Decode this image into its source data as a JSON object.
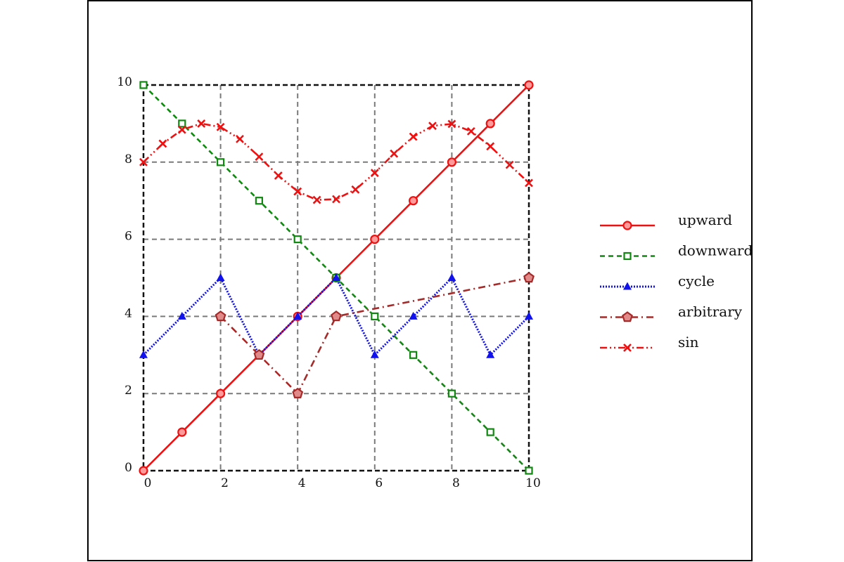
{
  "chart_data": {
    "type": "line",
    "title": "",
    "xlabel": "",
    "ylabel": "",
    "xlim": [
      0,
      10
    ],
    "ylim": [
      0,
      10
    ],
    "xticks": [
      0,
      2,
      4,
      6,
      8,
      10
    ],
    "yticks": [
      0,
      2,
      4,
      6,
      8,
      10
    ],
    "xtick_labels": [
      "0",
      "2",
      "4",
      "6",
      "8",
      "10"
    ],
    "ytick_labels": [
      "0",
      "2",
      "4",
      "6",
      "8",
      "10"
    ],
    "grid": true,
    "legend_position": "right",
    "series": [
      {
        "name": "upward",
        "color": "#ee1111",
        "line_style": "solid",
        "marker": "circle",
        "x": [
          0,
          1,
          2,
          3,
          4,
          5,
          6,
          7,
          8,
          9,
          10
        ],
        "y": [
          0,
          1,
          2,
          3,
          4,
          5,
          6,
          7,
          8,
          9,
          10
        ]
      },
      {
        "name": "downward",
        "color": "#118811",
        "line_style": "dashed",
        "marker": "square",
        "x": [
          0,
          1,
          2,
          3,
          4,
          5,
          6,
          7,
          8,
          9,
          10
        ],
        "y": [
          10,
          9,
          8,
          7,
          6,
          5,
          4,
          3,
          2,
          1,
          0
        ]
      },
      {
        "name": "cycle",
        "color": "#1111ee",
        "line_style": "dotted",
        "marker": "triangle",
        "x": [
          0,
          1,
          2,
          3,
          4,
          5,
          6,
          7,
          8,
          9,
          10
        ],
        "y": [
          3,
          4,
          5,
          3,
          4,
          5,
          3,
          4,
          5,
          3,
          4
        ]
      },
      {
        "name": "arbitrary",
        "color": "#a52a2a",
        "line_style": "dashdot",
        "marker": "pentagon",
        "x": [
          2,
          3,
          4,
          5,
          10
        ],
        "y": [
          4,
          3,
          2,
          4,
          5
        ]
      },
      {
        "name": "sin",
        "color": "#ee1111",
        "line_style": "dashdotdot",
        "marker": "x",
        "x": [
          0,
          0.5,
          1,
          1.5,
          2,
          2.5,
          3,
          3.5,
          4,
          4.5,
          5,
          5.5,
          6,
          6.5,
          7,
          7.5,
          8,
          8.5,
          9,
          9.5,
          10
        ],
        "y": [
          8.0,
          8.48,
          8.84,
          9.0,
          8.91,
          8.6,
          8.14,
          7.65,
          7.24,
          7.02,
          7.04,
          7.29,
          7.72,
          8.22,
          8.66,
          8.94,
          8.99,
          8.8,
          8.41,
          7.93,
          7.46
        ]
      }
    ]
  }
}
